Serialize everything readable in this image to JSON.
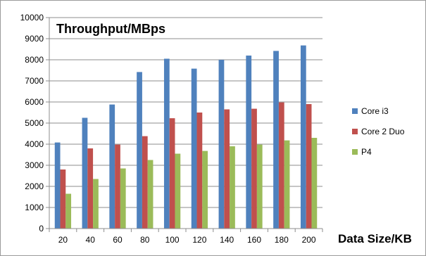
{
  "chart_data": {
    "type": "bar",
    "title": "Throughput/MBps",
    "xlabel": "Data Size/KB",
    "ylabel": "",
    "ylim": [
      0,
      10000
    ],
    "yticks": [
      0,
      1000,
      2000,
      3000,
      4000,
      5000,
      6000,
      7000,
      8000,
      9000,
      10000
    ],
    "categories": [
      "20",
      "40",
      "60",
      "80",
      "100",
      "120",
      "140",
      "160",
      "180",
      "200"
    ],
    "series": [
      {
        "name": "Core i3",
        "color": "#4f81bd",
        "values": [
          4080,
          5250,
          5880,
          7420,
          8050,
          7580,
          8000,
          8200,
          8420,
          8680
        ]
      },
      {
        "name": "Core 2 Duo",
        "color": "#c0504d",
        "values": [
          2800,
          3800,
          3980,
          4380,
          5230,
          5500,
          5650,
          5680,
          5980,
          5900
        ]
      },
      {
        "name": "P4",
        "color": "#9bbb59",
        "values": [
          1650,
          2350,
          2850,
          3250,
          3550,
          3680,
          3900,
          3980,
          4180,
          4300
        ]
      }
    ],
    "legend_position": "right",
    "grid": true
  }
}
